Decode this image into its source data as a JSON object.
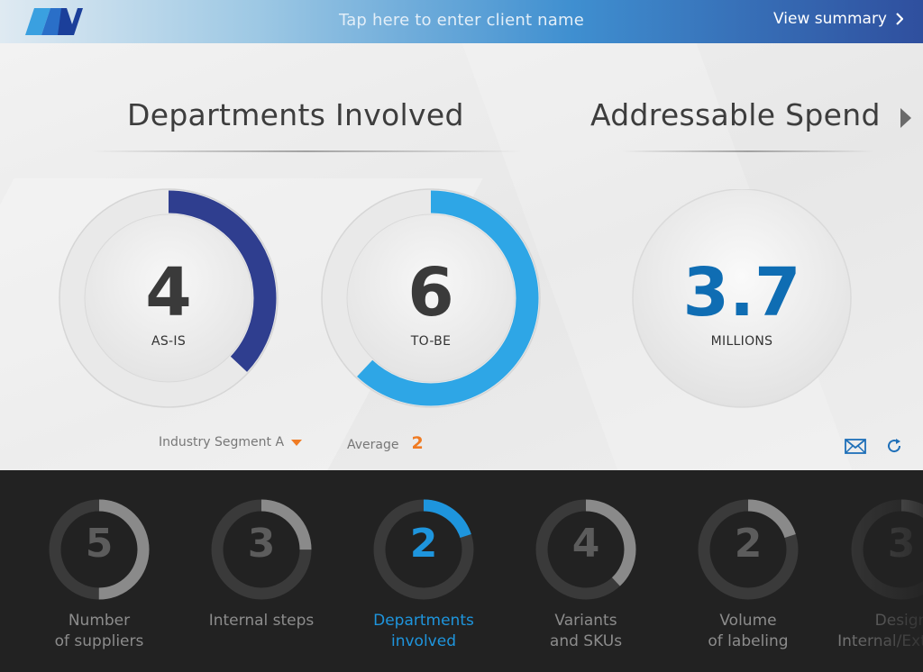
{
  "header": {
    "client_placeholder": "Tap here to enter client name",
    "view_summary_label": "View summary"
  },
  "panels": {
    "departments": {
      "title": "Departments Involved",
      "as_is": {
        "value": "4",
        "label": "AS-IS",
        "fill_fraction": 0.37,
        "color": "#2f3e8f"
      },
      "to_be": {
        "value": "6",
        "label": "TO-BE",
        "fill_fraction": 0.62,
        "color": "#2ea6e6"
      }
    },
    "spend": {
      "title": "Addressable Spend",
      "value": "3.7",
      "label": "MILLIONS",
      "color": "#0f6db3"
    }
  },
  "controls": {
    "segment_label": "Industry Segment A",
    "average_label": "Average",
    "average_value": "2"
  },
  "icons": {
    "email": "mail-icon",
    "refresh": "refresh-icon",
    "next": "chevron-right-icon"
  },
  "metrics": [
    {
      "value": "5",
      "label_line1": "Number",
      "label_line2": "of suppliers",
      "fill_fraction": 0.5,
      "active": false
    },
    {
      "value": "3",
      "label_line1": "Internal steps",
      "label_line2": "",
      "fill_fraction": 0.25,
      "active": false
    },
    {
      "value": "2",
      "label_line1": "Departments",
      "label_line2": "involved",
      "fill_fraction": 0.2,
      "active": true
    },
    {
      "value": "4",
      "label_line1": "Variants",
      "label_line2": "and SKUs",
      "fill_fraction": 0.38,
      "active": false
    },
    {
      "value": "2",
      "label_line1": "Volume",
      "label_line2": "of labeling",
      "fill_fraction": 0.2,
      "active": false
    },
    {
      "value": "3",
      "label_line1": "Design",
      "label_line2": "Internal/External",
      "fill_fraction": 0.3,
      "active": false
    }
  ],
  "colors": {
    "accent_orange": "#f07b23",
    "active_blue": "#1e95dd",
    "track_dark": "#3a3a3a",
    "fill_gray": "#8a8a8a"
  }
}
